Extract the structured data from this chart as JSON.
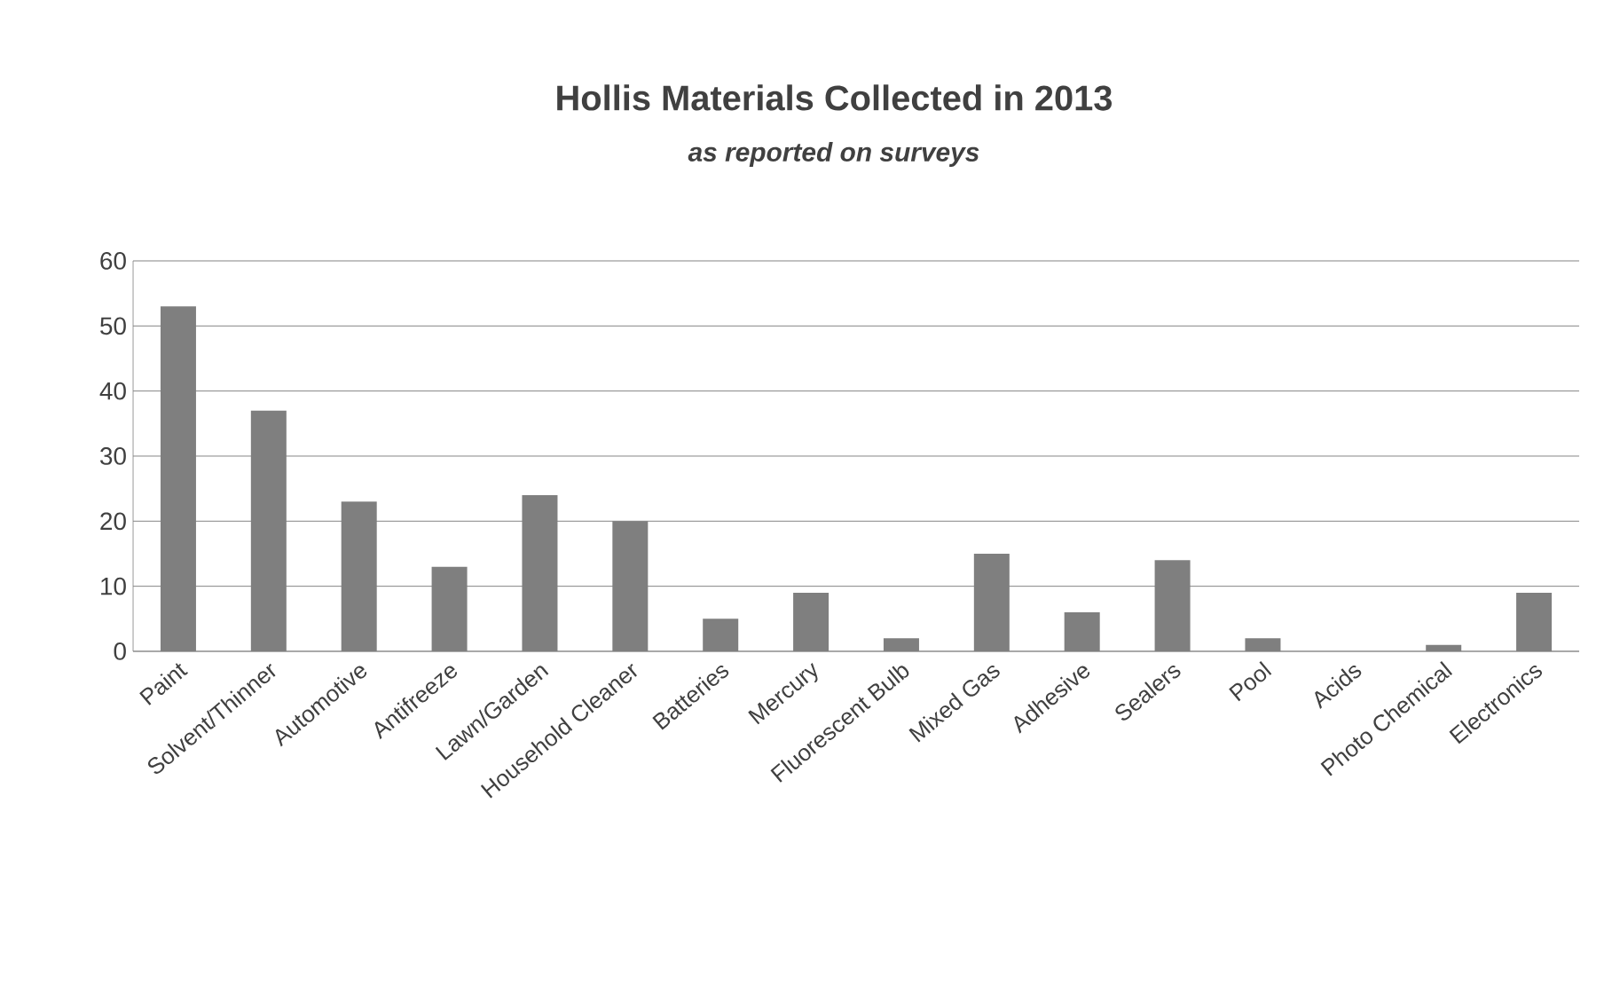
{
  "chart_data": {
    "type": "bar",
    "title": "Hollis Materials Collected in 2013",
    "subtitle": "as reported on surveys",
    "categories": [
      "Paint",
      "Solvent/Thinner",
      "Automotive",
      "Antifreeze",
      "Lawn/Garden",
      "Household Cleaner",
      "Batteries",
      "Mercury",
      "Fluorescent Bulb",
      "Mixed Gas",
      "Adhesive",
      "Sealers",
      "Pool",
      "Acids",
      "Photo Chemical",
      "Electronics"
    ],
    "values": [
      53,
      37,
      23,
      13,
      24,
      20,
      5,
      9,
      2,
      15,
      6,
      14,
      2,
      0,
      1,
      9
    ],
    "color": "#7f7f7f",
    "ylim": [
      0,
      60
    ],
    "yticks": [
      0,
      10,
      20,
      30,
      40,
      50,
      60
    ],
    "grid": "y"
  }
}
